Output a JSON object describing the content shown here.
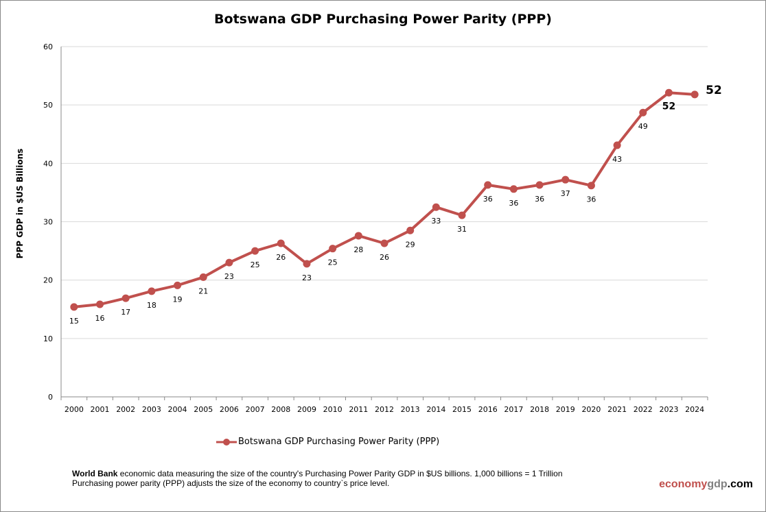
{
  "chart_data": {
    "type": "line",
    "title": "Botswana GDP Purchasing Power Parity (PPP)",
    "ylabel": "PPP GDP in $US Billions",
    "xlabel": "",
    "ylim": [
      0,
      60
    ],
    "yticks": [
      0,
      10,
      20,
      30,
      40,
      50,
      60
    ],
    "grid": true,
    "legend": "bottom",
    "categories": [
      "2000",
      "2001",
      "2002",
      "2003",
      "2004",
      "2005",
      "2006",
      "2007",
      "2008",
      "2009",
      "2010",
      "2011",
      "2012",
      "2013",
      "2014",
      "2015",
      "2016",
      "2017",
      "2018",
      "2019",
      "2020",
      "2021",
      "2022",
      "2023",
      "2024"
    ],
    "series": [
      {
        "name": "Botswana GDP Purchasing Power Parity (PPP)",
        "color": "#c0504d",
        "values": [
          15.4,
          15.85,
          16.9,
          18.1,
          19.1,
          20.5,
          23.0,
          25.0,
          26.3,
          22.8,
          25.4,
          27.6,
          26.3,
          28.5,
          32.5,
          31.1,
          36.3,
          35.6,
          36.3,
          37.2,
          36.2,
          43.1,
          48.7,
          52.1,
          51.8
        ],
        "data_labels": [
          "15",
          "16",
          "17",
          "18",
          "19",
          "21",
          "23",
          "25",
          "26",
          "23",
          "25",
          "28",
          "26",
          "29",
          "33",
          "31",
          "36",
          "36",
          "36",
          "37",
          "36",
          "43",
          "49",
          "52",
          "52"
        ]
      }
    ]
  },
  "footer": {
    "source_bold": "World Bank",
    "line1": " economic data  measuring the size of the country's Purchasing Power Parity GDP in $US billions. 1,000 billions = 1 Trillion",
    "line2": "Purchasing power parity (PPP) adjusts the size of the economy to country`s price level."
  },
  "brand": {
    "part1": "economy",
    "part2": "gdp",
    "part3": ".com",
    "color1": "#c0504d",
    "color2": "#808080",
    "color3": "#000000"
  }
}
